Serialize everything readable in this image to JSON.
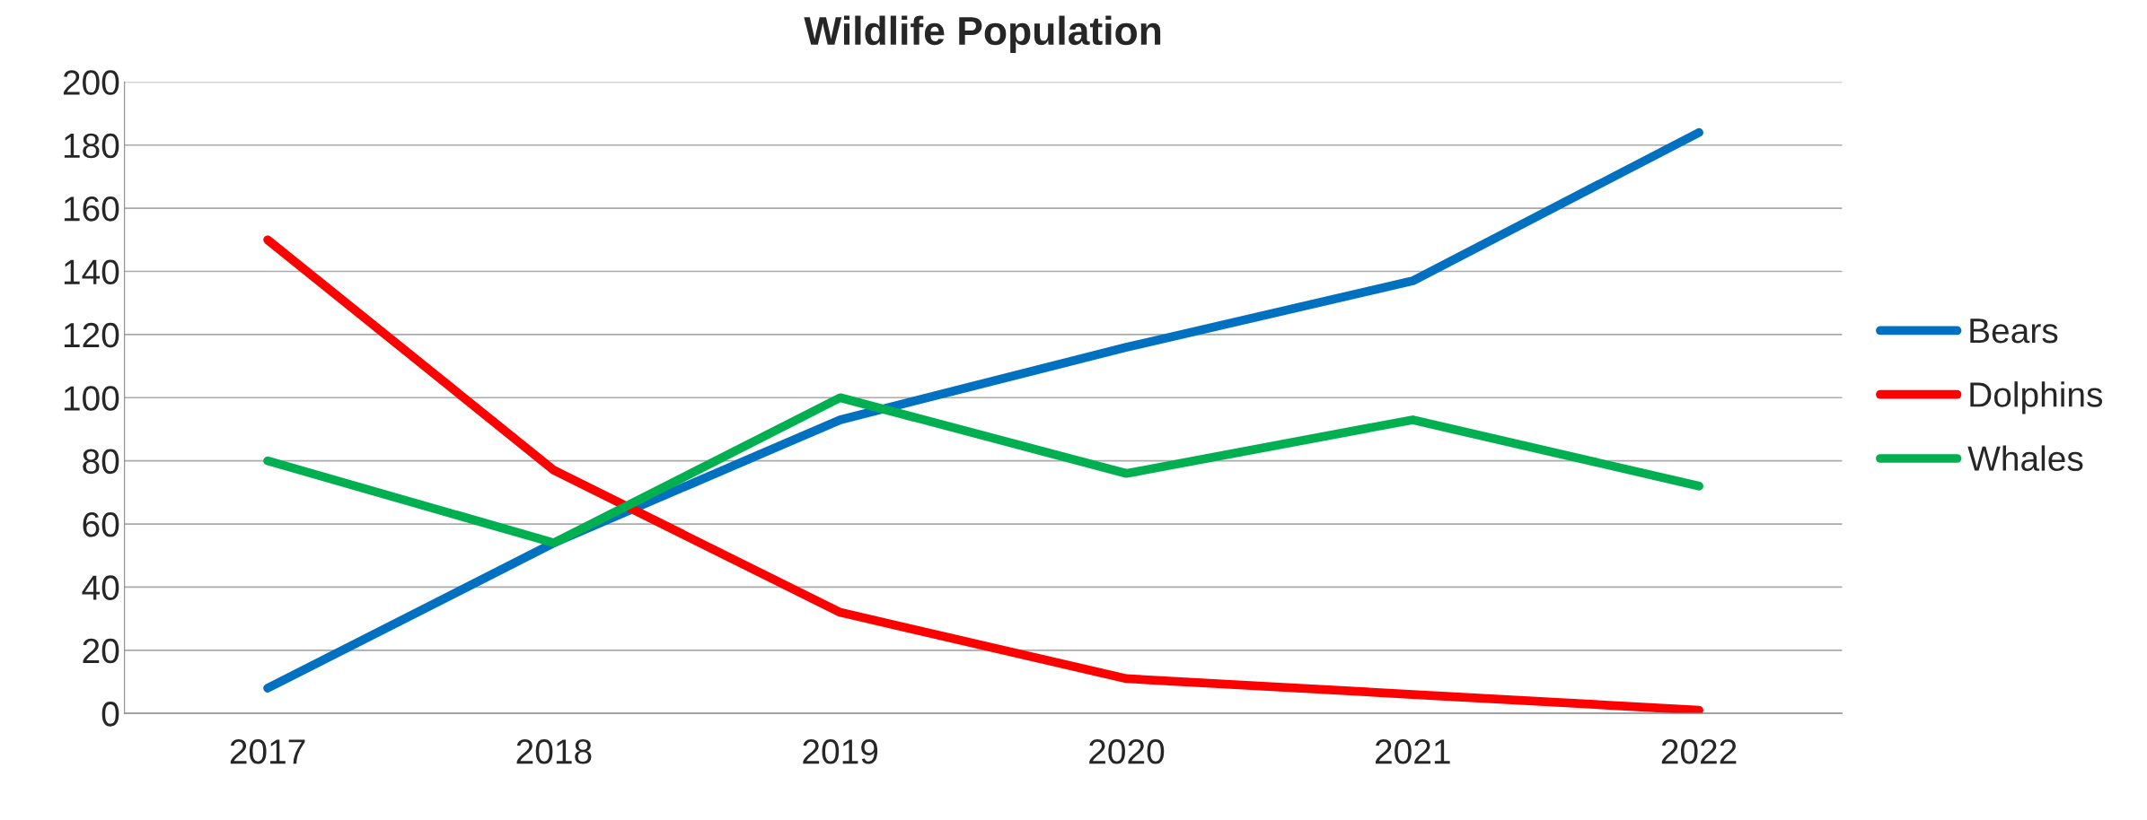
{
  "chart_data": {
    "type": "line",
    "title": "Wildlife Population",
    "categories": [
      "2017",
      "2018",
      "2019",
      "2020",
      "2021",
      "2022"
    ],
    "series": [
      {
        "name": "Bears",
        "color": "#0070c0",
        "values": [
          8,
          54,
          93,
          116,
          137,
          184
        ]
      },
      {
        "name": "Dolphins",
        "color": "#ff0000",
        "values": [
          150,
          77,
          32,
          11,
          6,
          1
        ]
      },
      {
        "name": "Whales",
        "color": "#00b050",
        "values": [
          80,
          54,
          100,
          76,
          93,
          72
        ]
      }
    ],
    "ylim": [
      0,
      200
    ],
    "yticks": [
      0,
      20,
      40,
      60,
      80,
      100,
      120,
      140,
      160,
      180,
      200
    ],
    "grid": "y",
    "legend": "right",
    "marker": "none",
    "line_style": "solid"
  }
}
